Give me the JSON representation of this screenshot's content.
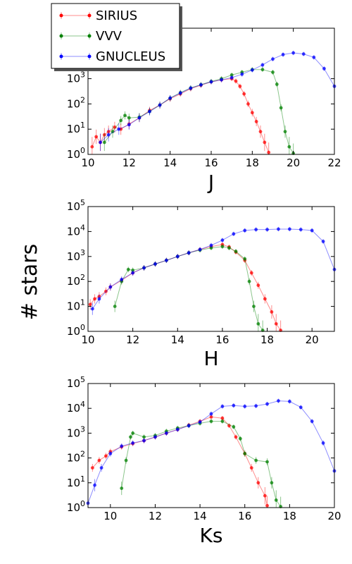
{
  "chart_data": {
    "ylabel": "# stars",
    "legend": {
      "placement": "top-left",
      "entries": [
        {
          "name": "SIRIUS",
          "color": "#ff0000"
        },
        {
          "name": "VVV",
          "color": "#008000"
        },
        {
          "name": "GNUCLEUS",
          "color": "#0000ff"
        }
      ]
    },
    "panels": [
      {
        "type": "scatter",
        "xlabel": "J",
        "xlim": [
          10,
          22
        ],
        "ylim": [
          1,
          100000
        ],
        "yscale": "log",
        "xticks": [
          "10",
          "12",
          "14",
          "16",
          "18",
          "20",
          "22"
        ],
        "yticks": [
          "10^0",
          "10^1",
          "10^2",
          "10^3"
        ],
        "series": [
          {
            "name": "SIRIUS",
            "color": "#ff0000",
            "x": [
              10.2,
              10.4,
              10.6,
              10.8,
              11.0,
              11.3,
              11.6,
              12.0,
              12.5,
              13.0,
              13.5,
              14.0,
              14.5,
              15.0,
              15.5,
              16.0,
              16.5,
              17.0,
              17.2,
              17.4,
              17.6,
              17.8,
              18.0,
              18.2,
              18.4,
              18.6,
              18.8
            ],
            "y": [
              2,
              5,
              3,
              6,
              8,
              12,
              10,
              16,
              28,
              55,
              90,
              160,
              250,
              400,
              550,
              750,
              900,
              1000,
              800,
              500,
              250,
              100,
              45,
              20,
              8,
              3,
              1.2
            ]
          },
          {
            "name": "VVV",
            "color": "#008000",
            "x": [
              10.8,
              11.2,
              11.6,
              11.8,
              12.0,
              12.5,
              13.0,
              13.5,
              14.0,
              14.5,
              15.0,
              15.5,
              16.0,
              16.5,
              17.0,
              17.5,
              18.0,
              18.5,
              19.0,
              19.2,
              19.4,
              19.6,
              19.8,
              20.0
            ],
            "y": [
              3,
              8,
              22,
              35,
              28,
              30,
              50,
              90,
              170,
              280,
              430,
              580,
              780,
              1000,
              1400,
              1800,
              2300,
              2300,
              1800,
              600,
              70,
              8,
              2,
              1.1
            ]
          },
          {
            "name": "GNUCLEUS",
            "color": "#0000ff",
            "x": [
              10.6,
              11.0,
              11.5,
              12.0,
              12.5,
              13.0,
              13.5,
              14.0,
              14.5,
              15.0,
              15.5,
              16.0,
              16.5,
              17.0,
              17.5,
              18.0,
              18.5,
              19.0,
              19.5,
              20.0,
              20.5,
              21.0,
              21.5,
              22.0
            ],
            "y": [
              3,
              6,
              10,
              15,
              28,
              50,
              90,
              170,
              270,
              420,
              570,
              750,
              900,
              1100,
              1500,
              2200,
              3500,
              6000,
              9000,
              10500,
              9500,
              7000,
              2500,
              500
            ]
          }
        ]
      },
      {
        "type": "scatter",
        "xlabel": "H",
        "xlim": [
          10,
          21
        ],
        "ylim": [
          1,
          100000
        ],
        "yscale": "log",
        "xticks": [
          "10",
          "12",
          "14",
          "16",
          "18",
          "20"
        ],
        "yticks": [
          "10^0",
          "10^1",
          "10^2",
          "10^3",
          "10^4",
          "10^5"
        ],
        "series": [
          {
            "name": "SIRIUS",
            "color": "#ff0000",
            "x": [
              10.1,
              10.3,
              10.5,
              10.8,
              11.0,
              11.5,
              12.0,
              12.5,
              13.0,
              13.5,
              14.0,
              14.5,
              15.0,
              15.5,
              16.0,
              16.3,
              16.6,
              17.0,
              17.3,
              17.6,
              17.9,
              18.2,
              18.4,
              18.6
            ],
            "y": [
              12,
              20,
              25,
              40,
              60,
              110,
              220,
              350,
              500,
              700,
              1000,
              1400,
              1900,
              2500,
              3000,
              2400,
              1500,
              700,
              220,
              70,
              20,
              6,
              2,
              1.1
            ]
          },
          {
            "name": "VVV",
            "color": "#008000",
            "x": [
              11.2,
              11.5,
              11.8,
              12.0,
              12.5,
              13.0,
              13.5,
              14.0,
              14.5,
              15.0,
              15.5,
              16.0,
              16.3,
              16.6,
              17.0,
              17.2,
              17.4,
              17.6,
              17.8
            ],
            "y": [
              10,
              100,
              300,
              280,
              350,
              500,
              700,
              1000,
              1400,
              1800,
              2200,
              2500,
              2200,
              1600,
              800,
              100,
              10,
              2,
              1.1
            ]
          },
          {
            "name": "GNUCLEUS",
            "color": "#0000ff",
            "x": [
              10.2,
              10.5,
              11.0,
              11.5,
              12.0,
              12.5,
              13.0,
              13.5,
              14.0,
              14.5,
              15.0,
              15.5,
              16.0,
              16.5,
              17.0,
              17.5,
              18.0,
              18.5,
              19.0,
              19.5,
              20.0,
              20.5,
              21.0
            ],
            "y": [
              8,
              20,
              60,
              120,
              220,
              350,
              500,
              700,
              1000,
              1400,
              1900,
              2800,
              4500,
              8000,
              11000,
              12000,
              12000,
              12500,
              12500,
              12000,
              11000,
              4000,
              300
            ]
          }
        ]
      },
      {
        "type": "scatter",
        "xlabel": "Ks",
        "xlim": [
          9,
          20
        ],
        "ylim": [
          1,
          100000
        ],
        "yscale": "log",
        "xticks": [
          "10",
          "12",
          "14",
          "16",
          "18",
          "20"
        ],
        "yticks": [
          "10^0",
          "10^1",
          "10^2",
          "10^3",
          "10^4",
          "10^5"
        ],
        "series": [
          {
            "name": "SIRIUS",
            "color": "#ff0000",
            "x": [
              9.2,
              9.5,
              9.8,
              10.0,
              10.5,
              11.0,
              11.5,
              12.0,
              12.5,
              13.0,
              13.5,
              14.0,
              14.5,
              15.0,
              15.3,
              15.6,
              16.0,
              16.3,
              16.6,
              16.9,
              17.0
            ],
            "y": [
              40,
              80,
              120,
              180,
              280,
              380,
              500,
              700,
              1000,
              1400,
              2100,
              3000,
              4500,
              4000,
              2000,
              700,
              150,
              40,
              10,
              3,
              1.2
            ]
          },
          {
            "name": "VVV",
            "color": "#008000",
            "x": [
              10.5,
              10.7,
              10.9,
              11.0,
              11.5,
              12.0,
              12.5,
              13.0,
              13.5,
              14.0,
              14.5,
              15.0,
              15.5,
              15.8,
              16.0,
              16.5,
              17.0,
              17.2,
              17.4,
              17.6
            ],
            "y": [
              6,
              80,
              700,
              1000,
              700,
              800,
              1200,
              1600,
              2000,
              2500,
              3000,
              3000,
              1800,
              600,
              150,
              80,
              70,
              10,
              2,
              1.1
            ]
          },
          {
            "name": "GNUCLEUS",
            "color": "#0000ff",
            "x": [
              9.0,
              9.3,
              9.6,
              10.0,
              10.5,
              11.0,
              11.5,
              12.0,
              12.5,
              13.0,
              13.5,
              14.0,
              14.5,
              15.0,
              15.5,
              16.0,
              16.5,
              17.0,
              17.5,
              18.0,
              18.5,
              19.0,
              19.5,
              20.0
            ],
            "y": [
              1.5,
              8,
              40,
              150,
              300,
              400,
              500,
              700,
              1000,
              1400,
              2000,
              2800,
              6000,
              12000,
              13000,
              12000,
              12500,
              15000,
              20000,
              19000,
              11000,
              3000,
              400,
              30
            ]
          }
        ]
      }
    ]
  }
}
